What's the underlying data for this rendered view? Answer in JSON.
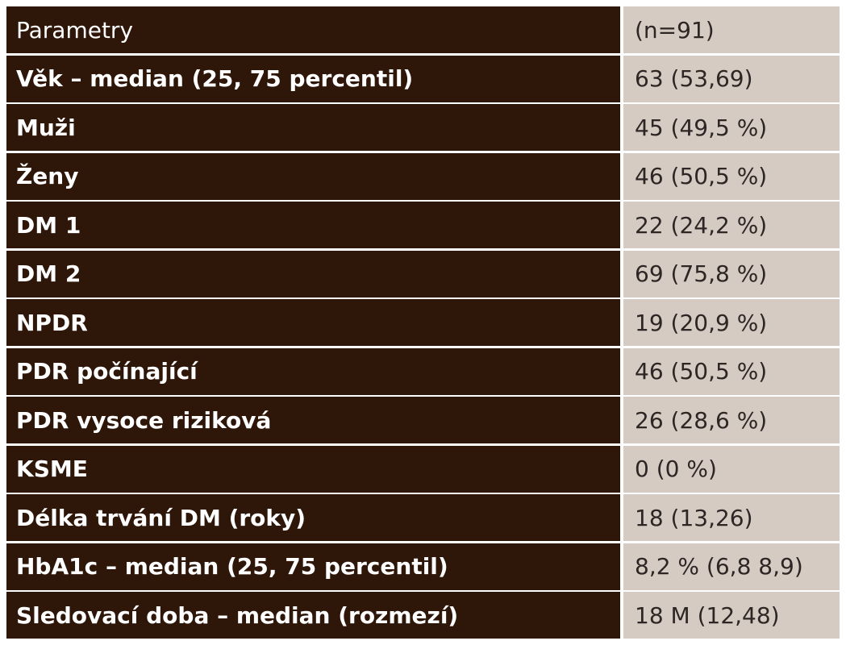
{
  "table": {
    "header": {
      "label": "Parametry",
      "value": "(n=91)"
    },
    "rows": [
      {
        "label": "Věk – median (25, 75 percentil)",
        "value": "63 (53,69)"
      },
      {
        "label": "Muži",
        "value": "45 (49,5 %)"
      },
      {
        "label": "Ženy",
        "value": "46 (50,5 %)"
      },
      {
        "label": "DM 1",
        "value": "22 (24,2 %)"
      },
      {
        "label": "DM 2",
        "value": "69 (75,8 %)"
      },
      {
        "label": "NPDR",
        "value": "19 (20,9 %)"
      },
      {
        "label": "PDR počínající",
        "value": "46 (50,5 %)"
      },
      {
        "label": "PDR vysoce riziková",
        "value": "26 (28,6 %)"
      },
      {
        "label": "KSME",
        "value": "0 (0 %)"
      },
      {
        "label": "Délka trvání DM (roky)",
        "value": "18 (13,26)"
      },
      {
        "label": "HbA1c – median (25, 75 percentil)",
        "value": "8,2 % (6,8 8,9)"
      },
      {
        "label": "Sledovací doba – median (rozmezí)",
        "value": "18 M (12,48)"
      }
    ]
  }
}
